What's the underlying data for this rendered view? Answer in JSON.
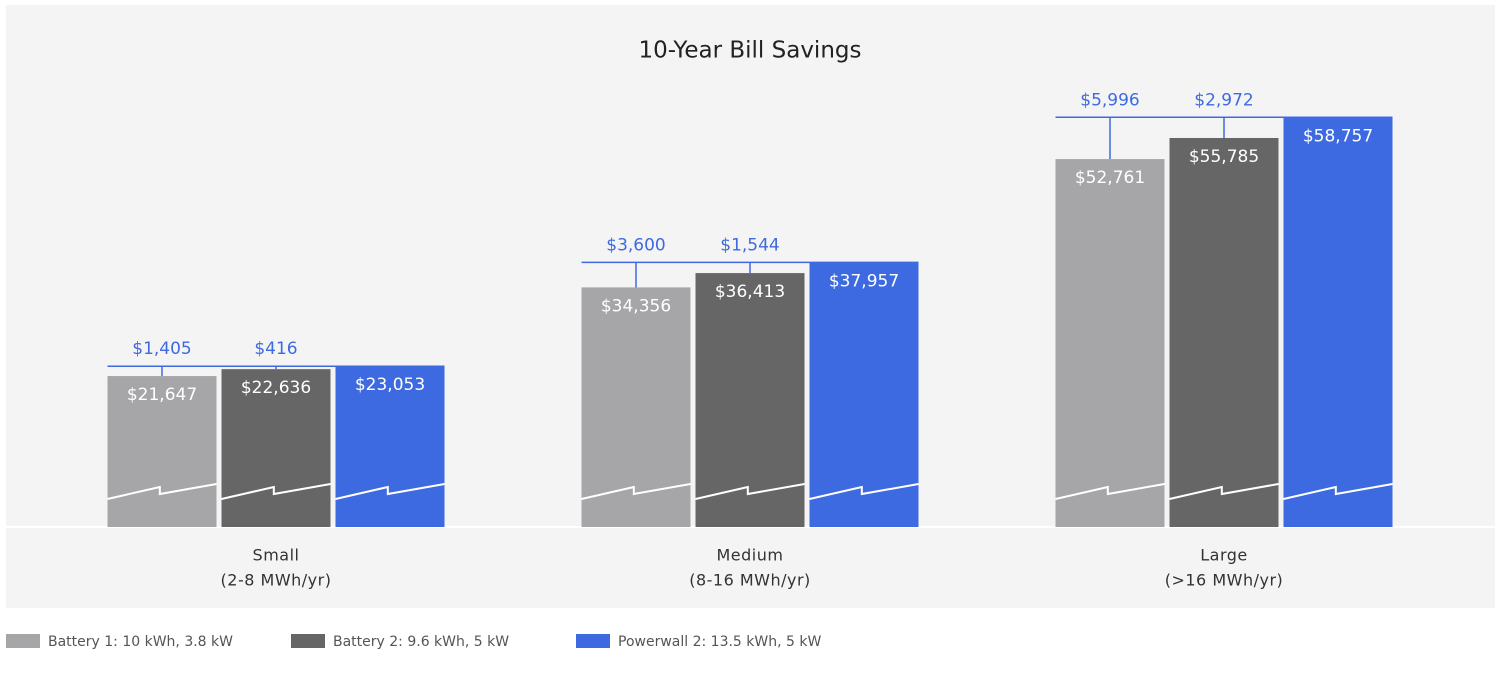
{
  "chart_data": {
    "type": "bar",
    "title": "10-Year Bill Savings",
    "categories": [
      [
        "Small",
        "(2-8 MWh/yr)"
      ],
      [
        "Medium",
        "(8-16 MWh/yr)"
      ],
      [
        "Large",
        "(>16 MWh/yr)"
      ]
    ],
    "series": [
      {
        "name": "Battery 1: 10 kWh, 3.8 kW",
        "color": "#a6a6a8",
        "values": [
          21647,
          34356,
          52761
        ],
        "value_labels": [
          "$21,647",
          "$34,356",
          "$52,761"
        ]
      },
      {
        "name": "Battery 2: 9.6 kWh, 5 kW",
        "color": "#666667",
        "values": [
          22636,
          36413,
          55785
        ],
        "value_labels": [
          "$22,636",
          "$36,413",
          "$55,785"
        ]
      },
      {
        "name": "Powerwall 2: 13.5 kWh, 5 kW",
        "color": "#3e6ae1",
        "values": [
          23053,
          37957,
          58757
        ],
        "value_labels": [
          "$23,053",
          "$37,957",
          "$58,757"
        ]
      }
    ],
    "differences": [
      [
        1405,
        416
      ],
      [
        3600,
        1544
      ],
      [
        5996,
        2972
      ]
    ],
    "difference_labels": [
      [
        "$1,405",
        "$416"
      ],
      [
        "$3,600",
        "$1,544"
      ],
      [
        "$5,996",
        "$2,972"
      ]
    ],
    "ylim": [
      0,
      60000
    ],
    "legend": "bottom-left"
  }
}
